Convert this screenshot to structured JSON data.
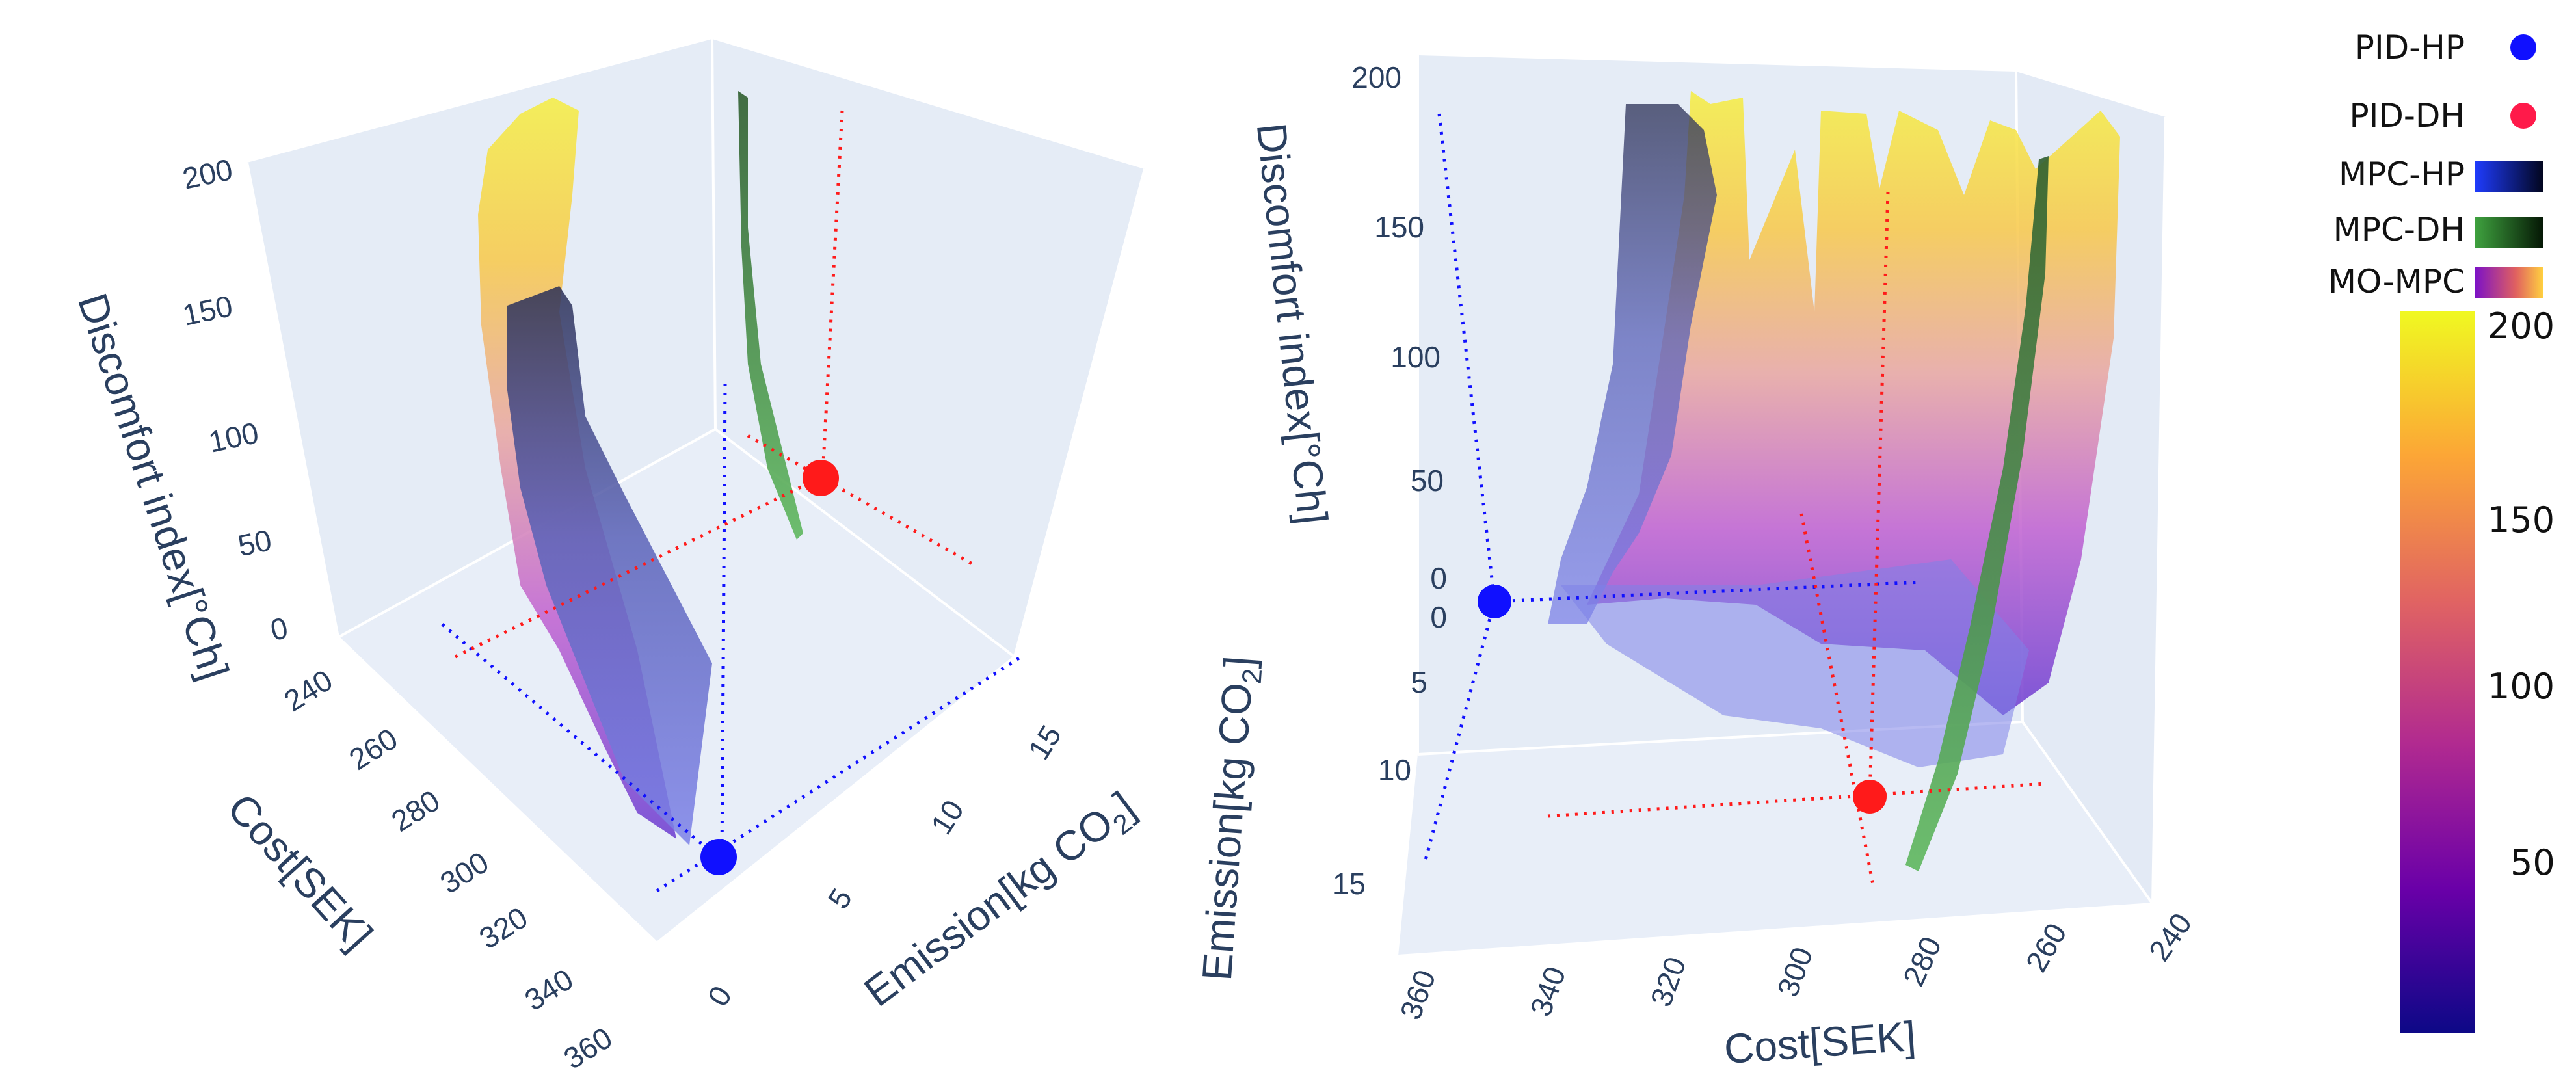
{
  "chart_data": [
    {
      "type": "surface3d",
      "view": "left",
      "axes": {
        "x": {
          "title": "Emission[kg CO",
          "subscript": "2",
          "title_tail": "]",
          "ticks": [
            "0",
            "5",
            "10",
            "15"
          ],
          "range": [
            0,
            17
          ]
        },
        "y": {
          "title": "Cost[SEK]",
          "ticks": [
            "240",
            "260",
            "280",
            "300",
            "320",
            "340",
            "360"
          ],
          "range": [
            240,
            360
          ]
        },
        "z": {
          "title": "Discomfort index[°Ch]",
          "ticks": [
            "0",
            "50",
            "100",
            "150",
            "200"
          ],
          "range": [
            0,
            200
          ]
        }
      },
      "points": [
        {
          "name": "PID-HP",
          "cost": 350,
          "emission": 0,
          "discomfort": 0,
          "color": "#1010ff"
        },
        {
          "name": "PID-DH",
          "cost": 290,
          "emission": 11,
          "discomfort": 0,
          "color": "#ff1a1a"
        }
      ],
      "surfaces": [
        {
          "name": "MO-MPC",
          "colorscale": "plasma",
          "z_range": [
            0,
            200
          ]
        },
        {
          "name": "MPC-HP",
          "colorscale": "blues"
        },
        {
          "name": "MPC-DH",
          "colorscale": "greens"
        }
      ]
    },
    {
      "type": "surface3d",
      "view": "right",
      "axes": {
        "x": {
          "title": "Cost[SEK]",
          "ticks": [
            "360",
            "340",
            "320",
            "300",
            "280",
            "260",
            "240"
          ],
          "range": [
            240,
            360
          ]
        },
        "y": {
          "title": "Emission[kg CO",
          "subscript": "2",
          "title_tail": "]",
          "ticks": [
            "0",
            "5",
            "10",
            "15"
          ],
          "range": [
            0,
            17
          ]
        },
        "z": {
          "title": "Discomfort index[°Ch]",
          "ticks": [
            "0",
            "50",
            "100",
            "150",
            "200"
          ],
          "range": [
            0,
            200
          ]
        }
      },
      "points": [
        {
          "name": "PID-HP",
          "cost": 350,
          "emission": 0,
          "discomfort": 0,
          "color": "#1010ff"
        },
        {
          "name": "PID-DH",
          "cost": 290,
          "emission": 11,
          "discomfort": 0,
          "color": "#ff1a1a"
        }
      ],
      "surfaces": [
        {
          "name": "MO-MPC",
          "colorscale": "plasma",
          "z_range": [
            0,
            200
          ]
        },
        {
          "name": "MPC-HP",
          "colorscale": "blues"
        },
        {
          "name": "MPC-DH",
          "colorscale": "greens"
        }
      ]
    }
  ],
  "legend": {
    "placement": "top-right",
    "items": [
      {
        "label": "PID-HP",
        "marker": "circle",
        "color": "#1010ff"
      },
      {
        "label": "PID-DH",
        "marker": "circle",
        "color": "#ff1a1a"
      },
      {
        "label": "MPC-HP",
        "marker": "gradient",
        "colors": [
          "#1f3cff",
          "#02061f"
        ]
      },
      {
        "label": "MPC-DH",
        "marker": "gradient",
        "colors": [
          "#3fa33f",
          "#051805"
        ]
      },
      {
        "label": "MO-MPC",
        "marker": "gradient",
        "colors": [
          "#7a10c8",
          "#ffd040"
        ]
      }
    ]
  },
  "colorbar": {
    "ticks": [
      "200",
      "150",
      "100",
      "50"
    ],
    "range": [
      0,
      200
    ],
    "colors": [
      "#f0f921",
      "#fca636",
      "#e16462",
      "#b12a90",
      "#6a00a8",
      "#0d0887"
    ]
  }
}
